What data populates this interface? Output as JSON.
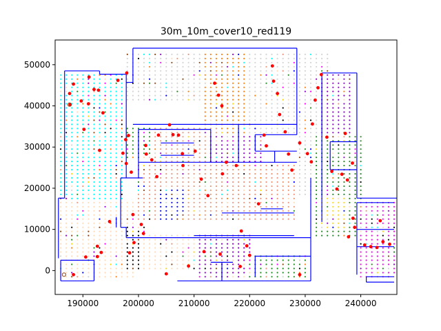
{
  "chart_data": {
    "type": "scatter",
    "title": "30m_10m_cover10_red119",
    "xlabel": "",
    "ylabel": "",
    "xlim": [
      185000,
      246500
    ],
    "ylim": [
      -5800,
      56000
    ],
    "xticks": [
      190000,
      200000,
      210000,
      220000,
      230000,
      240000
    ],
    "yticks": [
      0,
      10000,
      20000,
      30000,
      40000,
      50000
    ],
    "xtick_labels": [
      "190000",
      "200000",
      "210000",
      "220000",
      "230000",
      "240000"
    ],
    "ytick_labels": [
      "0",
      "10000",
      "20000",
      "30000",
      "40000",
      "50000"
    ],
    "grid": false,
    "legend": "none",
    "wall_color": "#0000ff",
    "point_colors": [
      "#ffdab9",
      "#ff7f0e",
      "#00ffff",
      "#9400d3",
      "#228b22",
      "#8b4513",
      "#0000ff",
      "#ffd700",
      "#ff00ff",
      "#000000",
      "#d3d3d3",
      "#e9967a"
    ],
    "highlight_color": "#ff0000",
    "highlighted_points": [
      [
        187600,
        43000
      ],
      [
        187700,
        40300
      ],
      [
        188300,
        45300
      ],
      [
        189700,
        41200
      ],
      [
        191000,
        40500
      ],
      [
        190200,
        34300
      ],
      [
        191100,
        47000
      ],
      [
        192000,
        44000
      ],
      [
        193000,
        29200
      ],
      [
        192800,
        43800
      ],
      [
        193600,
        38300
      ],
      [
        194800,
        11900
      ],
      [
        196300,
        46200
      ],
      [
        197700,
        31800
      ],
      [
        197200,
        28500
      ],
      [
        197800,
        26000
      ],
      [
        197900,
        48000
      ],
      [
        198700,
        23900
      ],
      [
        199000,
        13600
      ],
      [
        200500,
        11200
      ],
      [
        200900,
        9000
      ],
      [
        199200,
        6800
      ],
      [
        198400,
        4300
      ],
      [
        198200,
        32800
      ],
      [
        201300,
        30400
      ],
      [
        201400,
        28300
      ],
      [
        202400,
        26900
      ],
      [
        203300,
        22800
      ],
      [
        203600,
        32900
      ],
      [
        205600,
        35400
      ],
      [
        206200,
        33000
      ],
      [
        207200,
        32900
      ],
      [
        207900,
        28400
      ],
      [
        208000,
        25500
      ],
      [
        210200,
        29000
      ],
      [
        211300,
        22200
      ],
      [
        212500,
        18200
      ],
      [
        213700,
        45500
      ],
      [
        214400,
        42600
      ],
      [
        215000,
        40000
      ],
      [
        215800,
        26300
      ],
      [
        215100,
        23500
      ],
      [
        217600,
        25500
      ],
      [
        218500,
        9600
      ],
      [
        219500,
        6000
      ],
      [
        220000,
        3700
      ],
      [
        221600,
        16200
      ],
      [
        222600,
        32900
      ],
      [
        223000,
        30300
      ],
      [
        224100,
        49700
      ],
      [
        224300,
        46000
      ],
      [
        225000,
        43000
      ],
      [
        225400,
        37900
      ],
      [
        226400,
        33700
      ],
      [
        227000,
        28300
      ],
      [
        227600,
        24400
      ],
      [
        229000,
        31000
      ],
      [
        230400,
        28400
      ],
      [
        231100,
        26400
      ],
      [
        231300,
        35600
      ],
      [
        231800,
        41400
      ],
      [
        232300,
        44400
      ],
      [
        232900,
        47600
      ],
      [
        233900,
        32400
      ],
      [
        234800,
        24100
      ],
      [
        235700,
        19800
      ],
      [
        236600,
        23400
      ],
      [
        237600,
        22000
      ],
      [
        237200,
        33300
      ],
      [
        238500,
        26100
      ],
      [
        238600,
        12700
      ],
      [
        238900,
        10500
      ],
      [
        237800,
        8200
      ],
      [
        240700,
        6200
      ],
      [
        241800,
        5800
      ],
      [
        242900,
        5600
      ],
      [
        244000,
        7000
      ],
      [
        245200,
        6400
      ],
      [
        243500,
        12100
      ],
      [
        192600,
        5900
      ],
      [
        193300,
        4400
      ],
      [
        192600,
        3400
      ],
      [
        190500,
        3300
      ],
      [
        188300,
        -1000
      ],
      [
        214700,
        4000
      ],
      [
        211800,
        4600
      ],
      [
        218300,
        1000
      ],
      [
        229000,
        -1000
      ],
      [
        209000,
        1100
      ],
      [
        205000,
        -800
      ]
    ],
    "special_points": [
      {
        "x": 187600,
        "y": 40300,
        "color": "#8b4513"
      },
      {
        "x": 186600,
        "y": -1000,
        "color": "#8b4513"
      }
    ]
  }
}
